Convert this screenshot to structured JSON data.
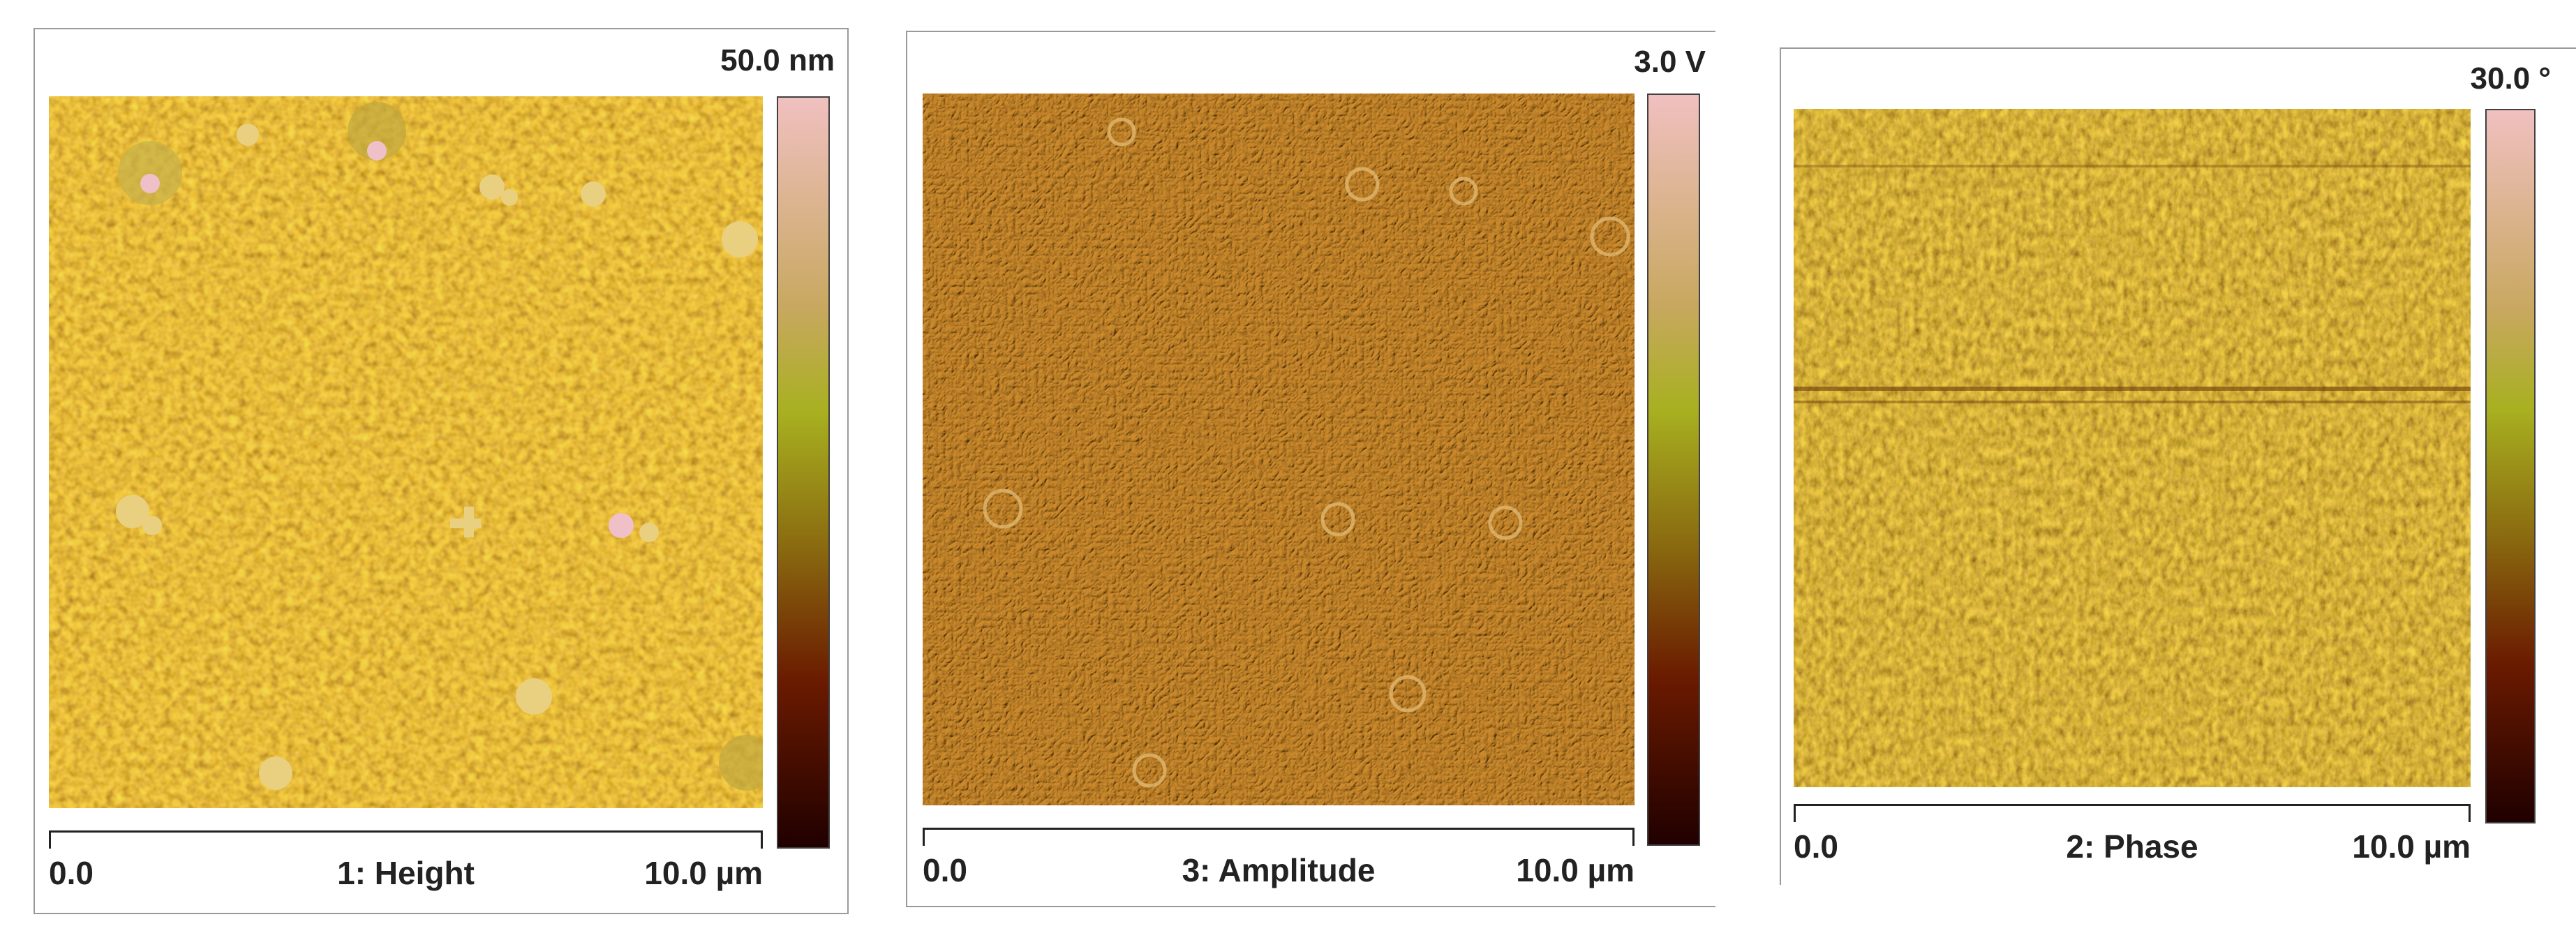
{
  "panels": [
    {
      "id": "height",
      "scale_label": "50.0 nm",
      "axis_start": "0.0",
      "channel": "1: Height",
      "axis_end": "10.0 µm",
      "colormap": [
        "#f0c0c0",
        "#c8a860",
        "#a8b020",
        "#8a6a10",
        "#6a1a00",
        "#200000"
      ]
    },
    {
      "id": "amplitude",
      "scale_label": "3.0 V",
      "axis_start": "0.0",
      "channel": "3: Amplitude",
      "axis_end": "10.0 µm",
      "colormap": [
        "#f0c0c0",
        "#c8a860",
        "#a8b020",
        "#8a6a10",
        "#6a1a00",
        "#200000"
      ]
    },
    {
      "id": "phase",
      "scale_label": "30.0 °",
      "axis_start": "0.0",
      "channel": "2: Phase",
      "axis_end": "10.0 µm",
      "colormap": [
        "#f0c0c0",
        "#c8a860",
        "#a8b020",
        "#8a6a10",
        "#6a1a00",
        "#200000"
      ]
    }
  ]
}
